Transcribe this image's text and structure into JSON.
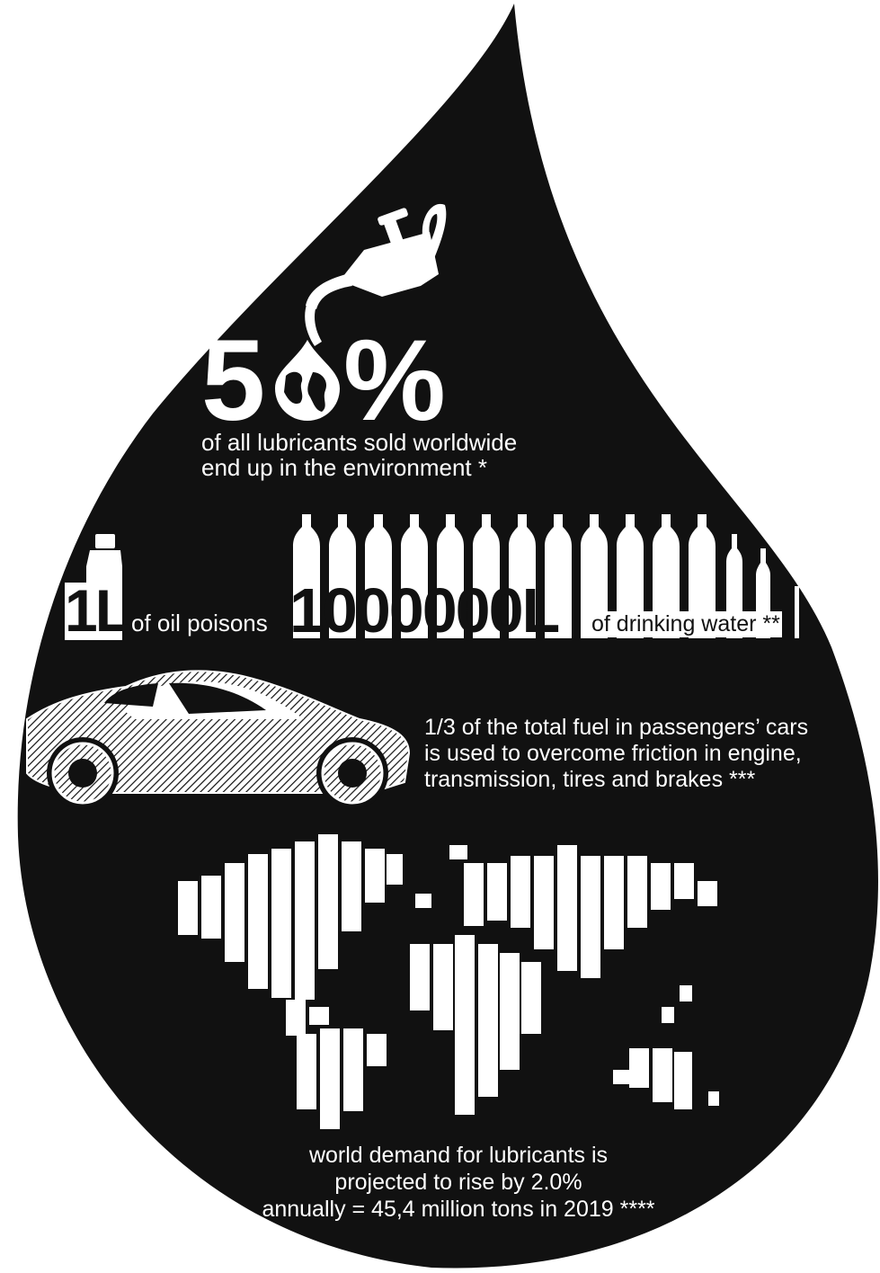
{
  "colors": {
    "drop": "#111111",
    "ink": "#ffffff",
    "background": "#ffffff"
  },
  "icons": {
    "oil_can": "oil-can-icon",
    "globe_drop": "globe-drop-icon",
    "oil_bottle": "oil-bottle-icon",
    "water_bottles": "water-bottle-icon",
    "car": "car-icon",
    "world_map": "world-map-icon"
  },
  "stat1": {
    "big_left": "5",
    "big_right": "%",
    "line1": "of all lubricants sold worldwide",
    "line2": "end up in the environment *"
  },
  "stat2": {
    "oil_amount": "1L",
    "mid_text": "of oil poisons",
    "water_amount": "1000000L",
    "end_text": "of drinking water **"
  },
  "stat3": {
    "line1": "1/3 of the total fuel in passengers’ cars",
    "line2": "is used to overcome friction in engine,",
    "line3": "transmission, tires and brakes ***"
  },
  "stat4": {
    "line1": "world demand for lubricants is",
    "line2": "projected to rise by 2.0%",
    "line3": "annually = 45,4 million tons in 2019 ****"
  }
}
